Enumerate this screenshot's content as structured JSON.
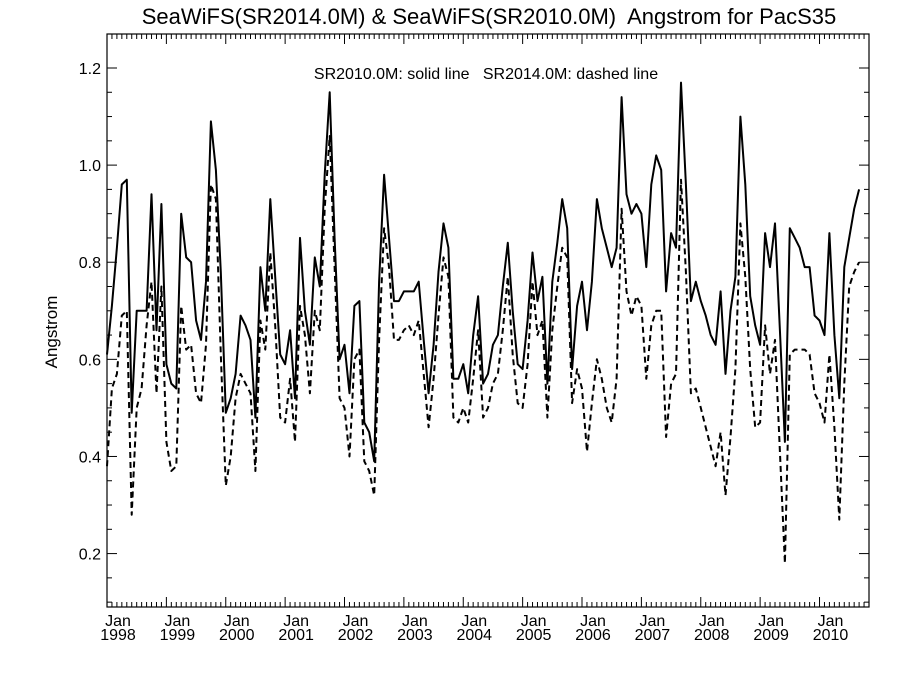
{
  "chart_data": {
    "type": "line",
    "title": "SeaWiFS(SR2014.0M) & SeaWiFS(SR2010.0M)  Angstrom for PacS35",
    "xlabel": "",
    "ylabel": "Angstrom",
    "legend_text": "SR2010.0M: solid line   SR2014.0M: dashed line",
    "x_start": "1998-01",
    "x_tick_labels": [
      {
        "month": "Jan",
        "year": "1998"
      },
      {
        "month": "Jan",
        "year": "1999"
      },
      {
        "month": "Jan",
        "year": "2000"
      },
      {
        "month": "Jan",
        "year": "2001"
      },
      {
        "month": "Jan",
        "year": "2002"
      },
      {
        "month": "Jan",
        "year": "2003"
      },
      {
        "month": "Jan",
        "year": "2004"
      },
      {
        "month": "Jan",
        "year": "2005"
      },
      {
        "month": "Jan",
        "year": "2006"
      },
      {
        "month": "Jan",
        "year": "2007"
      },
      {
        "month": "Jan",
        "year": "2008"
      },
      {
        "month": "Jan",
        "year": "2009"
      },
      {
        "month": "Jan",
        "year": "2010"
      }
    ],
    "y_ticks": [
      "0.2",
      "0.4",
      "0.6",
      "0.8",
      "1.0",
      "1.2"
    ],
    "xlim": [
      "1998-01",
      "2010-11"
    ],
    "ylim": [
      0.09,
      1.27
    ],
    "grid": false,
    "series": [
      {
        "name": "SR2010.0M",
        "style": "solid",
        "color": "#000000",
        "values": [
          0.61,
          0.71,
          0.83,
          0.96,
          0.97,
          0.49,
          0.7,
          0.7,
          0.7,
          0.94,
          0.66,
          0.92,
          0.59,
          0.55,
          0.54,
          0.9,
          0.81,
          0.8,
          0.68,
          0.64,
          0.76,
          1.09,
          0.99,
          0.78,
          0.49,
          0.52,
          0.57,
          0.69,
          0.67,
          0.64,
          0.48,
          0.79,
          0.7,
          0.93,
          0.77,
          0.61,
          0.59,
          0.66,
          0.52,
          0.85,
          0.7,
          0.63,
          0.81,
          0.75,
          0.98,
          1.15,
          0.85,
          0.6,
          0.63,
          0.53,
          0.71,
          0.72,
          0.47,
          0.45,
          0.39,
          0.76,
          0.98,
          0.85,
          0.72,
          0.72,
          0.74,
          0.74,
          0.74,
          0.76,
          0.64,
          0.53,
          0.63,
          0.78,
          0.88,
          0.83,
          0.56,
          0.56,
          0.59,
          0.53,
          0.65,
          0.73,
          0.55,
          0.57,
          0.63,
          0.65,
          0.75,
          0.84,
          0.7,
          0.59,
          0.58,
          0.68,
          0.82,
          0.72,
          0.77,
          0.55,
          0.76,
          0.84,
          0.93,
          0.87,
          0.58,
          0.71,
          0.76,
          0.66,
          0.76,
          0.93,
          0.87,
          0.83,
          0.79,
          0.83,
          1.14,
          0.94,
          0.9,
          0.92,
          0.9,
          0.79,
          0.96,
          1.02,
          0.99,
          0.74,
          0.86,
          0.83,
          1.17,
          0.96,
          0.72,
          0.76,
          0.72,
          0.69,
          0.65,
          0.63,
          0.74,
          0.57,
          0.7,
          0.77,
          1.1,
          0.96,
          0.73,
          0.67,
          0.63,
          0.86,
          0.79,
          0.88,
          0.66,
          0.43,
          0.87,
          0.85,
          0.83,
          0.79,
          0.79,
          0.69,
          0.68,
          0.65,
          0.86,
          0.65,
          0.52,
          0.79,
          0.85,
          0.91,
          0.95
        ]
      },
      {
        "name": "SR2014.0M",
        "style": "dashed",
        "color": "#000000",
        "values": [
          0.38,
          0.54,
          0.57,
          0.69,
          0.7,
          0.28,
          0.5,
          0.54,
          0.67,
          0.76,
          0.53,
          0.75,
          0.43,
          0.37,
          0.38,
          0.71,
          0.62,
          0.63,
          0.53,
          0.51,
          0.63,
          0.96,
          0.93,
          0.61,
          0.34,
          0.4,
          0.52,
          0.57,
          0.55,
          0.53,
          0.37,
          0.68,
          0.62,
          0.82,
          0.67,
          0.48,
          0.47,
          0.56,
          0.43,
          0.71,
          0.65,
          0.53,
          0.7,
          0.66,
          0.91,
          1.06,
          0.79,
          0.52,
          0.5,
          0.4,
          0.6,
          0.62,
          0.39,
          0.37,
          0.32,
          0.64,
          0.87,
          0.79,
          0.64,
          0.64,
          0.66,
          0.67,
          0.65,
          0.68,
          0.57,
          0.46,
          0.56,
          0.69,
          0.81,
          0.77,
          0.48,
          0.47,
          0.5,
          0.47,
          0.56,
          0.66,
          0.48,
          0.5,
          0.55,
          0.57,
          0.66,
          0.77,
          0.61,
          0.51,
          0.5,
          0.59,
          0.76,
          0.65,
          0.68,
          0.48,
          0.66,
          0.75,
          0.83,
          0.81,
          0.51,
          0.58,
          0.54,
          0.41,
          0.51,
          0.6,
          0.56,
          0.5,
          0.47,
          0.56,
          0.91,
          0.74,
          0.69,
          0.73,
          0.71,
          0.56,
          0.67,
          0.7,
          0.7,
          0.44,
          0.55,
          0.57,
          0.97,
          0.78,
          0.53,
          0.54,
          0.5,
          0.46,
          0.42,
          0.38,
          0.45,
          0.32,
          0.44,
          0.58,
          0.88,
          0.77,
          0.58,
          0.46,
          0.47,
          0.67,
          0.57,
          0.64,
          0.41,
          0.18,
          0.61,
          0.62,
          0.62,
          0.62,
          0.61,
          0.53,
          0.51,
          0.47,
          0.61,
          0.46,
          0.27,
          0.55,
          0.75,
          0.78,
          0.8
        ]
      }
    ]
  }
}
